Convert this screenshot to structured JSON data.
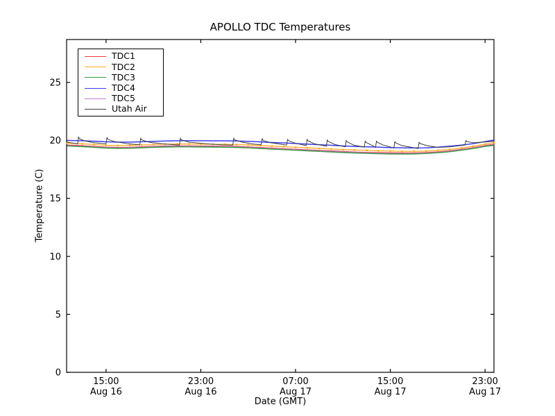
{
  "figure": {
    "background": "#ffffff",
    "axes_color": "#000000"
  },
  "chart_data": {
    "type": "line",
    "title": "APOLLO TDC Temperatures",
    "xlabel": "Date (GMT)",
    "ylabel": "Temperature (C)",
    "x_unit_hours_since": "Aug 16 00:00 GMT",
    "xlim": [
      11.67,
      47.75
    ],
    "ylim": [
      0,
      28.7
    ],
    "grid": false,
    "yticks": [
      0,
      5,
      10,
      15,
      20,
      25
    ],
    "xticks": [
      {
        "t": 15,
        "line1": "15:00",
        "line2": "Aug 16"
      },
      {
        "t": 23,
        "line1": "23:00",
        "line2": "Aug 16"
      },
      {
        "t": 31,
        "line1": "07:00",
        "line2": "Aug 17"
      },
      {
        "t": 39,
        "line1": "15:00",
        "line2": "Aug 17"
      },
      {
        "t": 47,
        "line1": "23:00",
        "line2": "Aug 17"
      }
    ],
    "legend": {
      "position": "upper-left",
      "entries": [
        {
          "name": "TDC1",
          "color": "#ee3b33"
        },
        {
          "name": "TDC2",
          "color": "#ffa929"
        },
        {
          "name": "TDC3",
          "color": "#2e9a38"
        },
        {
          "name": "TDC4",
          "color": "#3b3bf0"
        },
        {
          "name": "TDC5",
          "color": "#bb7fd0"
        },
        {
          "name": "Utah Air",
          "color": "#3c3c3c"
        }
      ]
    },
    "series": [
      {
        "name": "TDC4",
        "color": "#3b3bf0",
        "width": 1.5,
        "marker": false,
        "x": [
          11.7,
          13,
          14,
          15,
          16,
          17,
          18,
          19,
          20,
          21,
          22,
          23,
          24,
          25,
          26,
          27,
          28,
          29,
          30,
          31,
          32,
          33,
          34,
          35,
          36,
          37,
          38,
          39,
          40,
          41,
          42,
          43,
          44,
          45,
          46,
          47,
          47.75
        ],
        "y": [
          20.0,
          19.97,
          19.93,
          19.88,
          19.85,
          19.85,
          19.88,
          19.92,
          19.95,
          19.97,
          19.98,
          19.97,
          19.96,
          19.96,
          19.95,
          19.92,
          19.87,
          19.82,
          19.78,
          19.73,
          19.68,
          19.63,
          19.58,
          19.52,
          19.48,
          19.45,
          19.42,
          19.38,
          19.36,
          19.35,
          19.36,
          19.42,
          19.5,
          19.6,
          19.72,
          19.9,
          20.03
        ]
      },
      {
        "name": "TDC2",
        "color": "#ffa929",
        "width": 1.3,
        "marker": true,
        "x": [
          11.7,
          13,
          14,
          15,
          16,
          17,
          18,
          19,
          20,
          21,
          22,
          23,
          24,
          25,
          26,
          27,
          28,
          29,
          30,
          31,
          32,
          33,
          34,
          35,
          36,
          37,
          38,
          39,
          40,
          41,
          42,
          43,
          44,
          45,
          46,
          47,
          47.75
        ],
        "y": [
          19.76,
          19.71,
          19.64,
          19.58,
          19.56,
          19.57,
          19.61,
          19.65,
          19.68,
          19.69,
          19.69,
          19.68,
          19.67,
          19.66,
          19.64,
          19.61,
          19.56,
          19.51,
          19.46,
          19.41,
          19.36,
          19.31,
          19.26,
          19.21,
          19.17,
          19.14,
          19.11,
          19.08,
          19.06,
          19.06,
          19.08,
          19.14,
          19.23,
          19.35,
          19.5,
          19.68,
          19.8
        ]
      },
      {
        "name": "TDC1",
        "color": "#ee3b33",
        "width": 1.3,
        "marker": false,
        "x": [
          11.7,
          13,
          14,
          15,
          16,
          17,
          18,
          19,
          20,
          21,
          22,
          23,
          24,
          25,
          26,
          27,
          28,
          29,
          30,
          31,
          32,
          33,
          34,
          35,
          36,
          37,
          38,
          39,
          40,
          41,
          42,
          43,
          44,
          45,
          46,
          47,
          47.75
        ],
        "y": [
          19.6,
          19.55,
          19.48,
          19.42,
          19.4,
          19.41,
          19.45,
          19.49,
          19.52,
          19.53,
          19.53,
          19.52,
          19.51,
          19.5,
          19.48,
          19.44,
          19.39,
          19.34,
          19.29,
          19.24,
          19.19,
          19.14,
          19.1,
          19.05,
          19.0,
          18.97,
          18.95,
          18.93,
          18.92,
          18.92,
          18.95,
          19.01,
          19.1,
          19.23,
          19.38,
          19.56,
          19.67
        ]
      },
      {
        "name": "TDC5",
        "color": "#bb7fd0",
        "width": 1.3,
        "marker": false,
        "x": [
          11.7,
          13,
          14,
          15,
          16,
          17,
          18,
          19,
          20,
          21,
          22,
          23,
          24,
          25,
          26,
          27,
          28,
          29,
          30,
          31,
          32,
          33,
          34,
          35,
          36,
          37,
          38,
          39,
          40,
          41,
          42,
          43,
          44,
          45,
          46,
          47,
          47.75
        ],
        "y": [
          19.55,
          19.5,
          19.44,
          19.38,
          19.36,
          19.37,
          19.41,
          19.45,
          19.48,
          19.49,
          19.49,
          19.48,
          19.47,
          19.46,
          19.44,
          19.4,
          19.35,
          19.3,
          19.25,
          19.2,
          19.15,
          19.1,
          19.06,
          19.01,
          18.96,
          18.93,
          18.9,
          18.88,
          18.87,
          18.88,
          18.91,
          18.97,
          19.06,
          19.19,
          19.34,
          19.52,
          19.62
        ]
      },
      {
        "name": "TDC3",
        "color": "#2e9a38",
        "width": 1.3,
        "marker": false,
        "x": [
          11.7,
          13,
          14,
          15,
          16,
          17,
          18,
          19,
          20,
          21,
          22,
          23,
          24,
          25,
          26,
          27,
          28,
          29,
          30,
          31,
          32,
          33,
          34,
          35,
          36,
          37,
          38,
          39,
          40,
          41,
          42,
          43,
          44,
          45,
          46,
          47,
          47.75
        ],
        "y": [
          19.52,
          19.46,
          19.4,
          19.34,
          19.31,
          19.32,
          19.36,
          19.4,
          19.43,
          19.44,
          19.44,
          19.43,
          19.42,
          19.41,
          19.39,
          19.35,
          19.3,
          19.25,
          19.2,
          19.15,
          19.1,
          19.05,
          19.0,
          18.95,
          18.91,
          18.88,
          18.85,
          18.83,
          18.82,
          18.83,
          18.87,
          18.93,
          19.02,
          19.15,
          19.3,
          19.48,
          19.57
        ]
      },
      {
        "name": "Utah Air",
        "color": "#3c3c3c",
        "width": 1.0,
        "marker": false,
        "x": [
          11.7,
          12.6,
          12.68,
          12.75,
          13.2,
          14.0,
          15.0,
          15.08,
          15.15,
          15.7,
          16.8,
          17.85,
          17.93,
          18.0,
          18.6,
          19.8,
          21.2,
          21.28,
          21.35,
          22.0,
          23.5,
          24.8,
          25.7,
          25.78,
          25.85,
          26.5,
          27.3,
          28.1,
          28.18,
          28.25,
          28.9,
          30.25,
          30.33,
          30.4,
          31.0,
          31.9,
          31.98,
          32.05,
          32.6,
          33.6,
          33.68,
          33.75,
          34.3,
          35.2,
          35.28,
          35.35,
          35.9,
          36.8,
          36.88,
          36.95,
          37.4,
          37.75,
          37.83,
          37.9,
          38.4,
          39.3,
          39.38,
          39.45,
          40.0,
          41.35,
          41.43,
          41.5,
          42.1,
          43.0,
          44.0,
          45.3,
          45.38,
          45.45,
          46.0,
          46.8,
          47.75
        ],
        "y": [
          19.85,
          19.7,
          20.3,
          20.15,
          19.95,
          19.8,
          19.7,
          20.25,
          20.1,
          19.9,
          19.72,
          19.62,
          20.2,
          20.05,
          19.85,
          19.7,
          19.6,
          20.2,
          20.05,
          19.85,
          19.7,
          19.62,
          19.6,
          20.2,
          20.05,
          19.85,
          19.7,
          19.62,
          20.15,
          20.0,
          19.8,
          19.6,
          20.1,
          19.98,
          19.75,
          19.55,
          20.1,
          19.97,
          19.7,
          19.5,
          20.05,
          19.92,
          19.65,
          19.45,
          20.0,
          19.88,
          19.6,
          19.42,
          19.95,
          19.83,
          19.6,
          19.4,
          19.95,
          19.83,
          19.6,
          19.35,
          19.9,
          19.78,
          19.55,
          19.3,
          19.85,
          19.73,
          19.55,
          19.4,
          19.45,
          19.6,
          20.0,
          19.9,
          19.8,
          19.85,
          19.92
        ]
      }
    ]
  }
}
